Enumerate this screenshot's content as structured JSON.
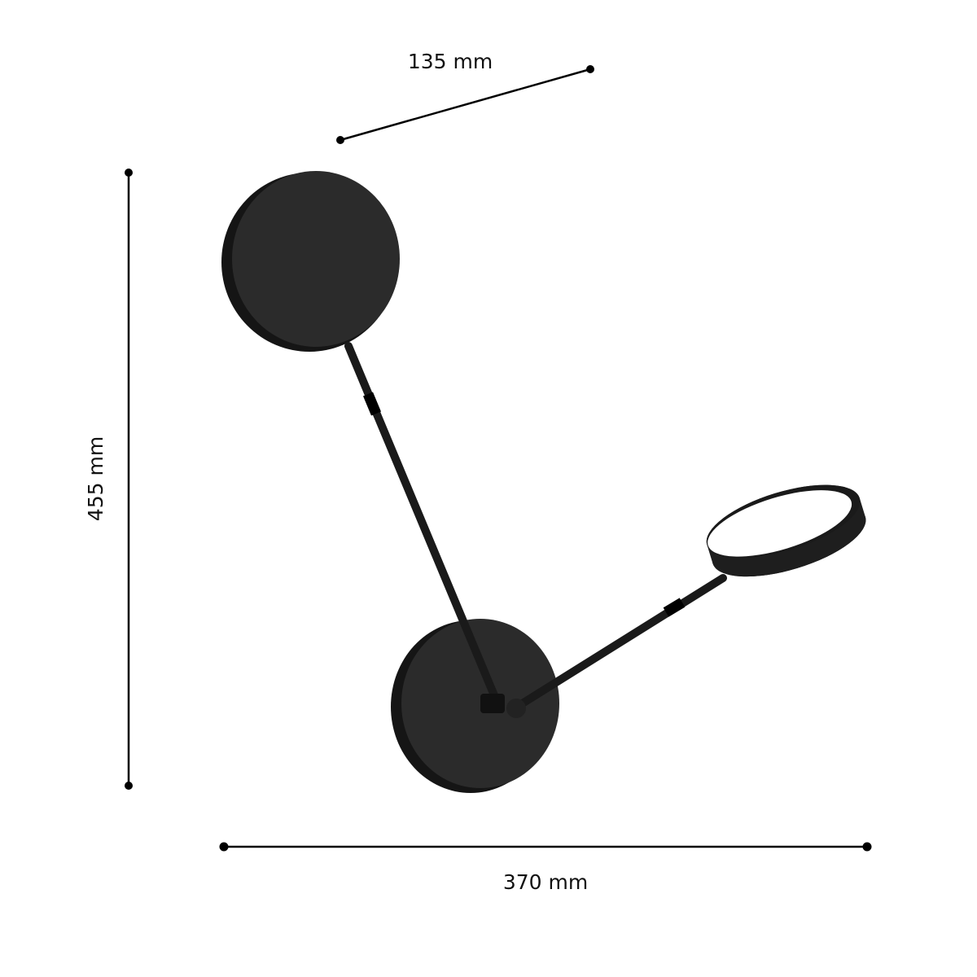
{
  "dimensions": {
    "depth": "135 mm",
    "height": "455 mm",
    "width": "370 mm"
  },
  "colors": {
    "lamp_body": "#2a2a2a",
    "lamp_edge": "#111111",
    "light_face": "#ffffff",
    "dimension_line": "#000000"
  }
}
